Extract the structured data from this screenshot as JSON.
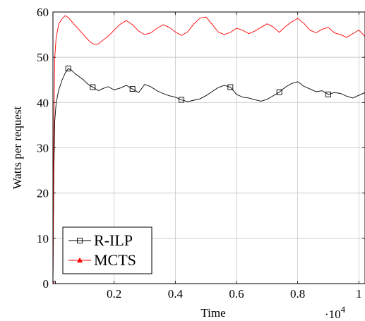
{
  "chart_data": {
    "type": "line",
    "title": "",
    "xlabel": "Time",
    "ylabel": "Watts per request",
    "x_scale_note": "·10",
    "x_scale_exponent": "4",
    "xlim": [
      0,
      10200
    ],
    "ylim": [
      0,
      60
    ],
    "xticks": [
      {
        "value": 2000,
        "label": "0.2"
      },
      {
        "value": 4000,
        "label": "0.4"
      },
      {
        "value": 6000,
        "label": "0.6"
      },
      {
        "value": 8000,
        "label": "0.8"
      },
      {
        "value": 10000,
        "label": "1"
      }
    ],
    "yticks": [
      {
        "value": 0,
        "label": "0"
      },
      {
        "value": 10,
        "label": "10"
      },
      {
        "value": 20,
        "label": "20"
      },
      {
        "value": 30,
        "label": "30"
      },
      {
        "value": 40,
        "label": "40"
      },
      {
        "value": 50,
        "label": "50"
      },
      {
        "value": 60,
        "label": "60"
      }
    ],
    "grid": true,
    "legend_position": "bottom-left",
    "series": [
      {
        "name": "R-ILP",
        "color": "#000000",
        "marker": "square",
        "x": [
          0,
          30,
          60,
          100,
          150,
          200,
          300,
          400,
          500,
          600,
          700,
          800,
          900,
          1000,
          1100,
          1200,
          1300,
          1400,
          1500,
          1600,
          1800,
          2000,
          2200,
          2400,
          2600,
          2800,
          3000,
          3200,
          3400,
          3600,
          3800,
          4000,
          4200,
          4400,
          4600,
          4800,
          5000,
          5200,
          5400,
          5600,
          5800,
          6000,
          6200,
          6400,
          6600,
          6800,
          7000,
          7200,
          7400,
          7600,
          7800,
          8000,
          8200,
          8400,
          8600,
          8800,
          9000,
          9200,
          9400,
          9600,
          9800,
          10000,
          10200
        ],
        "y": [
          0,
          25,
          36,
          39.5,
          41.5,
          43,
          45,
          46.5,
          47.5,
          47.2,
          46.5,
          46,
          45.5,
          45,
          44.3,
          43.8,
          43.4,
          43,
          42.6,
          43,
          43.5,
          42.8,
          43.2,
          43.8,
          43,
          42.2,
          44,
          43.5,
          42.6,
          42,
          41.5,
          41.2,
          40.6,
          40.2,
          40.5,
          40.8,
          41.5,
          42.4,
          43.3,
          43.8,
          43.4,
          41.8,
          41.2,
          41,
          40.6,
          40.3,
          40.7,
          41.5,
          42.3,
          43.4,
          44.2,
          44.6,
          43.6,
          43,
          42.4,
          42.6,
          41.8,
          42.2,
          42,
          41.4,
          41,
          41.6,
          42.2
        ]
      },
      {
        "name": "MCTS",
        "color": "#ff0000",
        "marker": "triangle",
        "x": [
          0,
          30,
          60,
          100,
          150,
          200,
          300,
          400,
          500,
          600,
          700,
          800,
          900,
          1000,
          1100,
          1200,
          1300,
          1400,
          1500,
          1600,
          1800,
          2000,
          2200,
          2400,
          2600,
          2800,
          3000,
          3200,
          3400,
          3600,
          3800,
          4000,
          4200,
          4400,
          4600,
          4800,
          5000,
          5200,
          5400,
          5600,
          5800,
          6000,
          6200,
          6400,
          6600,
          6800,
          7000,
          7200,
          7400,
          7600,
          7800,
          8000,
          8200,
          8400,
          8600,
          8800,
          9000,
          9200,
          9400,
          9600,
          9800,
          10000,
          10200
        ],
        "y": [
          0,
          35,
          50,
          54,
          56,
          57.5,
          58.5,
          59.2,
          58.8,
          58,
          57.2,
          56.5,
          55.7,
          55,
          54.2,
          53.5,
          53,
          52.8,
          53,
          53.6,
          54.6,
          56,
          57.3,
          58.1,
          57.2,
          55.8,
          55,
          55.4,
          56.4,
          57.2,
          56.6,
          55.6,
          54.8,
          55.6,
          57.3,
          58.6,
          58.9,
          57.3,
          55.6,
          55,
          55.5,
          56.4,
          56,
          55.2,
          55.8,
          56.6,
          57.4,
          56.7,
          55.5,
          56.8,
          57.8,
          58.6,
          57.5,
          56,
          55.4,
          56.2,
          56.6,
          55.4,
          55,
          54.4,
          55.2,
          56,
          54.6
        ]
      }
    ]
  }
}
